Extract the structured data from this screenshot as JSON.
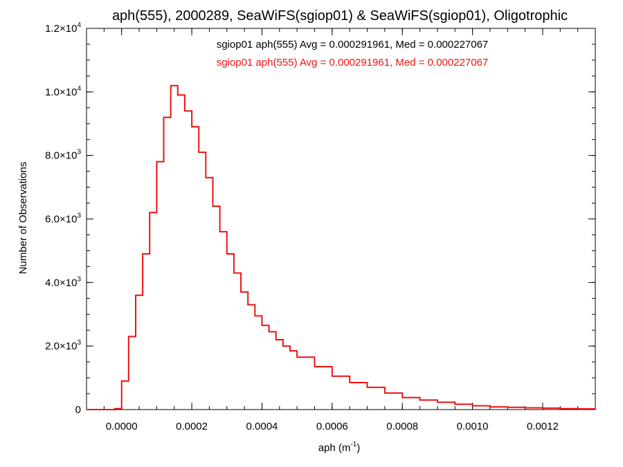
{
  "chart_data": {
    "type": "histogram",
    "title": "aph(555), 2000289, SeaWiFS(sgiop01) & SeaWiFS(sgiop01), Oligotrophic",
    "xlabel": {
      "base": "aph (m",
      "sup": "-1",
      "tail": ")"
    },
    "ylabel": "Number of Observations",
    "xlim": [
      -0.0001,
      0.00135
    ],
    "ylim": [
      0,
      12000
    ],
    "x_ticks": [
      {
        "value": 0.0,
        "label": "0.0000"
      },
      {
        "value": 0.0002,
        "label": "0.0002"
      },
      {
        "value": 0.0004,
        "label": "0.0004"
      },
      {
        "value": 0.0006,
        "label": "0.0006"
      },
      {
        "value": 0.0008,
        "label": "0.0008"
      },
      {
        "value": 0.001,
        "label": "0.0010"
      },
      {
        "value": 0.0012,
        "label": "0.0012"
      }
    ],
    "y_ticks": [
      {
        "value": 0,
        "mant": "0",
        "exp": ""
      },
      {
        "value": 2000,
        "mant": "2.0×10",
        "exp": "3"
      },
      {
        "value": 4000,
        "mant": "4.0×10",
        "exp": "3"
      },
      {
        "value": 6000,
        "mant": "6.0×10",
        "exp": "3"
      },
      {
        "value": 8000,
        "mant": "8.0×10",
        "exp": "3"
      },
      {
        "value": 10000,
        "mant": "1.0×10",
        "exp": "4"
      },
      {
        "value": 12000,
        "mant": "1.2×10",
        "exp": "4"
      }
    ],
    "legend": [
      {
        "text": "sgiop01 aph(555) Avg = 0.000291961, Med = 0.000227067",
        "color": "#000000"
      },
      {
        "text": "sgiop01 aph(555) Avg = 0.000291961, Med = 0.000227067",
        "color": "#ee1111"
      }
    ],
    "legend_position": "top-right",
    "series": [
      {
        "color": "#ee1111",
        "x": [
          -0.0001,
          -2e-05,
          0.0,
          2e-05,
          4e-05,
          6e-05,
          8e-05,
          0.0001,
          0.00012,
          0.00014,
          0.00016,
          0.00018,
          0.0002,
          0.00022,
          0.00024,
          0.00026,
          0.00028,
          0.0003,
          0.00032,
          0.00034,
          0.00036,
          0.00038,
          0.0004,
          0.00042,
          0.00044,
          0.00046,
          0.00048,
          0.0005,
          0.00055,
          0.0006,
          0.00065,
          0.0007,
          0.00075,
          0.0008,
          0.00085,
          0.0009,
          0.00095,
          0.001,
          0.00105,
          0.0011,
          0.00115,
          0.0012,
          0.00125,
          0.0013,
          0.00135
        ],
        "y": [
          0,
          30,
          900,
          2300,
          3600,
          4900,
          6200,
          7800,
          9200,
          10200,
          9900,
          9400,
          8900,
          8100,
          7300,
          6400,
          5600,
          4900,
          4300,
          3700,
          3300,
          2950,
          2650,
          2450,
          2200,
          2000,
          1850,
          1650,
          1350,
          1050,
          850,
          700,
          520,
          380,
          300,
          230,
          170,
          120,
          85,
          70,
          55,
          45,
          30,
          25,
          15
        ]
      }
    ]
  }
}
